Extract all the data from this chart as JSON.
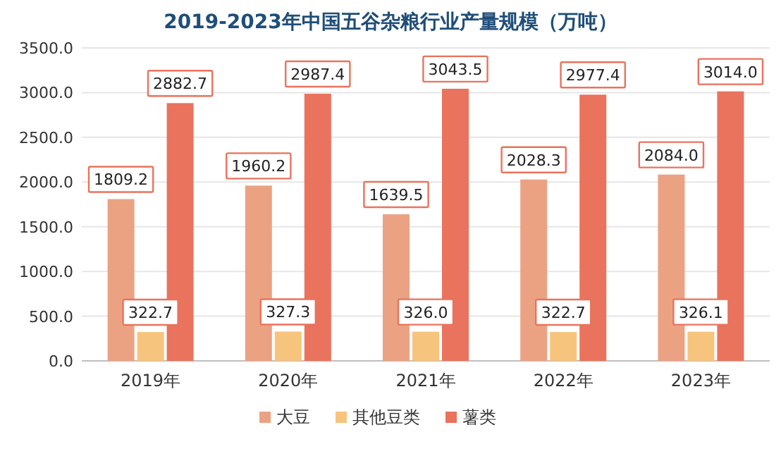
{
  "chart_data": {
    "type": "bar",
    "title": "2019-2023年中国五谷杂粮行业产量规模（万吨）",
    "categories": [
      "2019年",
      "2020年",
      "2021年",
      "2022年",
      "2023年"
    ],
    "series": [
      {
        "name": "大豆",
        "color": "#eba283",
        "values": [
          1809.2,
          1960.2,
          1639.5,
          2028.3,
          2084.0
        ],
        "value_labels": [
          "1809.2",
          "1960.2",
          "1639.5",
          "2028.3",
          "2084.0"
        ]
      },
      {
        "name": "其他豆类",
        "color": "#f7c47e",
        "values": [
          322.7,
          327.3,
          326.0,
          322.7,
          326.1
        ],
        "value_labels": [
          "322.7",
          "327.3",
          "326.0",
          "322.7",
          "326.1"
        ]
      },
      {
        "name": "薯类",
        "color": "#e9735d",
        "values": [
          2882.7,
          2987.4,
          3043.5,
          2977.4,
          3014.0
        ],
        "value_labels": [
          "2882.7",
          "2987.4",
          "3043.5",
          "2977.4",
          "3014.0"
        ]
      }
    ],
    "ylim": [
      0,
      3500
    ],
    "yticks": [
      {
        "value": 0,
        "label": "0.0"
      },
      {
        "value": 500,
        "label": "500.0"
      },
      {
        "value": 1000,
        "label": "1000.0"
      },
      {
        "value": 1500,
        "label": "1500.0"
      },
      {
        "value": 2000,
        "label": "2000.0"
      },
      {
        "value": 2500,
        "label": "2500.0"
      },
      {
        "value": 3000,
        "label": "3000.0"
      },
      {
        "value": 3500,
        "label": "3500.0"
      }
    ],
    "grid": "y",
    "legend": "bottom"
  }
}
